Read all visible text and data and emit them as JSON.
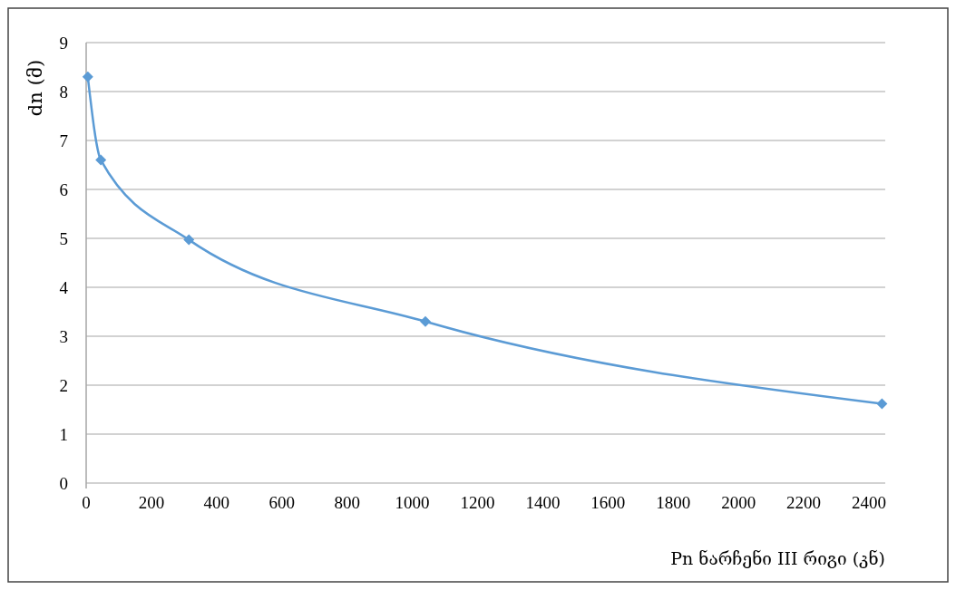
{
  "chart_data": {
    "type": "line",
    "xlabel": "Pn ნარჩენი III რიგი (კნ)",
    "ylabel": "dn (მ)",
    "x": [
      5,
      45,
      315,
      1040,
      2440
    ],
    "series": [
      {
        "color": "#5b9bd5",
        "values": [
          8.3,
          6.6,
          4.97,
          3.3,
          1.62
        ]
      }
    ],
    "xlim": [
      0,
      2450
    ],
    "xticks": [
      0,
      200,
      400,
      600,
      800,
      1000,
      1200,
      1400,
      1600,
      1800,
      2000,
      2200,
      2400
    ],
    "ylim": [
      0,
      9
    ],
    "yticks": [
      0,
      1,
      2,
      3,
      4,
      5,
      6,
      7,
      8,
      9
    ],
    "grid": "y",
    "marker": "diamond",
    "line_style": "solid"
  }
}
